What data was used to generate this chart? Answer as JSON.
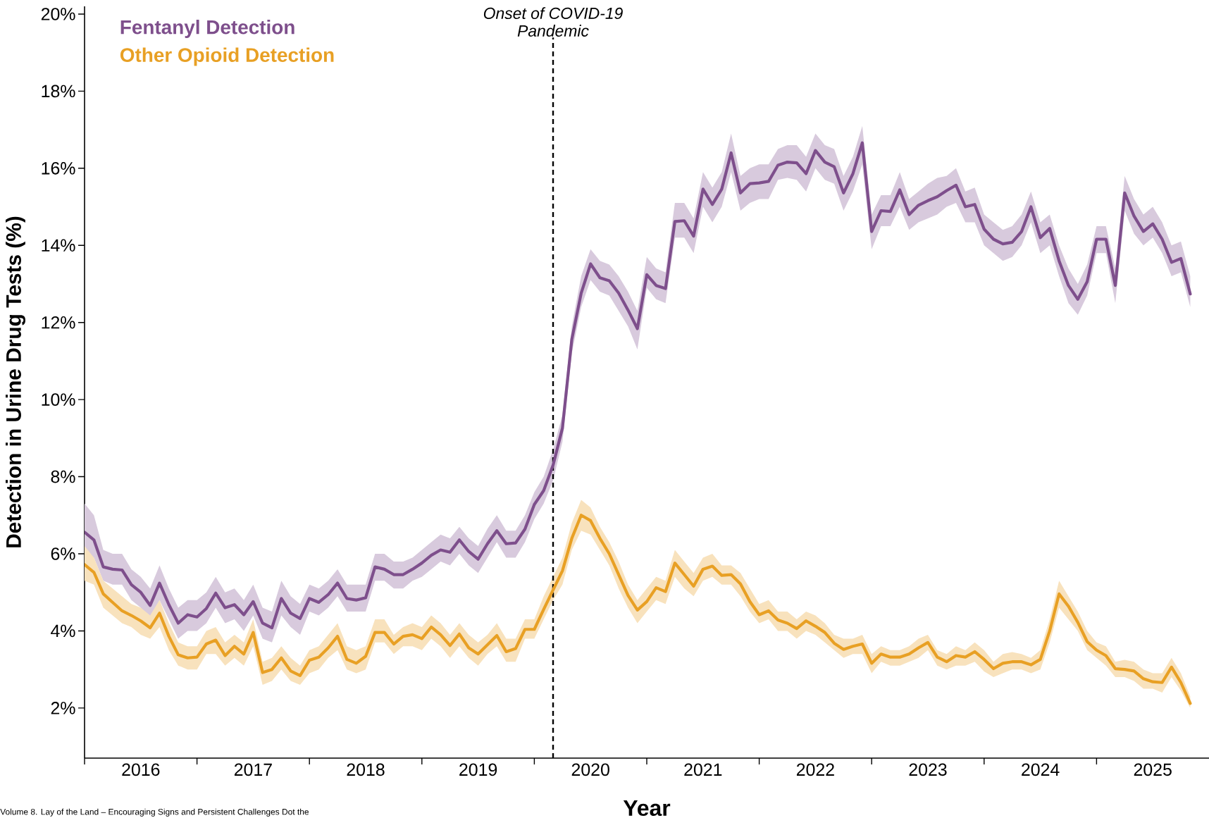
{
  "chart_data": {
    "type": "line",
    "xlabel": "Year",
    "ylabel": "Detection in Urine Drug Tests (%)",
    "legend": "top left",
    "line_style": "solid",
    "xlim": [
      "2016-01",
      "2026-01"
    ],
    "ylim": [
      0.7,
      20.2
    ],
    "xticks": [
      {
        "value": "2016-01",
        "label": null
      },
      {
        "value": "2017-01",
        "label": null
      },
      {
        "value": "2018-01",
        "label": null
      },
      {
        "value": "2019-01",
        "label": null
      },
      {
        "value": "2020-01",
        "label": null
      },
      {
        "value": "2021-01",
        "label": null
      },
      {
        "value": "2022-01",
        "label": null
      },
      {
        "value": "2023-01",
        "label": null
      },
      {
        "value": "2024-01",
        "label": null
      },
      {
        "value": "2025-01",
        "label": null
      },
      {
        "value": "2016-07",
        "label": "2016"
      },
      {
        "value": "2017-07",
        "label": "2017"
      },
      {
        "value": "2018-07",
        "label": "2018"
      },
      {
        "value": "2019-07",
        "label": "2019"
      },
      {
        "value": "2020-07",
        "label": "2020"
      },
      {
        "value": "2021-07",
        "label": "2021"
      },
      {
        "value": "2022-07",
        "label": "2022"
      },
      {
        "value": "2023-07",
        "label": "2023"
      },
      {
        "value": "2024-07",
        "label": "2024"
      },
      {
        "value": "2025-07",
        "label": "2025"
      }
    ],
    "yticks": [
      {
        "value": 2,
        "label": "2%"
      },
      {
        "value": 4,
        "label": "4%"
      },
      {
        "value": 6,
        "label": "6%"
      },
      {
        "value": 8,
        "label": "8%"
      },
      {
        "value": 10,
        "label": "10%"
      },
      {
        "value": 12,
        "label": "12%"
      },
      {
        "value": 14,
        "label": "14%"
      },
      {
        "value": 16,
        "label": "16%"
      },
      {
        "value": 18,
        "label": "18%"
      },
      {
        "value": 20,
        "label": "20%"
      }
    ],
    "ref_lines": [
      {
        "axis": "x",
        "value": "2020-03",
        "label": "Onset of COVID-19 Pandemic",
        "color": "#000000",
        "line_style": "dashed"
      }
    ],
    "annotations": [
      "Volume 8. Lay of the Land – Encouraging Signs and Persistent Challenges Dot the"
    ],
    "x": [
      "2016-01",
      "2016-02",
      "2016-03",
      "2016-04",
      "2016-05",
      "2016-06",
      "2016-07",
      "2016-08",
      "2016-09",
      "2016-10",
      "2016-11",
      "2016-12",
      "2017-01",
      "2017-02",
      "2017-03",
      "2017-04",
      "2017-05",
      "2017-06",
      "2017-07",
      "2017-08",
      "2017-09",
      "2017-10",
      "2017-11",
      "2017-12",
      "2018-01",
      "2018-02",
      "2018-03",
      "2018-04",
      "2018-05",
      "2018-06",
      "2018-07",
      "2018-08",
      "2018-09",
      "2018-10",
      "2018-11",
      "2018-12",
      "2019-01",
      "2019-02",
      "2019-03",
      "2019-04",
      "2019-05",
      "2019-06",
      "2019-07",
      "2019-08",
      "2019-09",
      "2019-10",
      "2019-11",
      "2019-12",
      "2020-01",
      "2020-02",
      "2020-03",
      "2020-04",
      "2020-05",
      "2020-06",
      "2020-07",
      "2020-08",
      "2020-09",
      "2020-10",
      "2020-11",
      "2020-12",
      "2021-01",
      "2021-02",
      "2021-03",
      "2021-04",
      "2021-05",
      "2021-06",
      "2021-07",
      "2021-08",
      "2021-09",
      "2021-10",
      "2021-11",
      "2021-12",
      "2022-01",
      "2022-02",
      "2022-03",
      "2022-04",
      "2022-05",
      "2022-06",
      "2022-07",
      "2022-08",
      "2022-09",
      "2022-10",
      "2022-11",
      "2022-12",
      "2023-01",
      "2023-02",
      "2023-03",
      "2023-04",
      "2023-05",
      "2023-06",
      "2023-07",
      "2023-08",
      "2023-09",
      "2023-10",
      "2023-11",
      "2023-12",
      "2024-01",
      "2024-02",
      "2024-03",
      "2024-04",
      "2024-05",
      "2024-06",
      "2024-07",
      "2024-08",
      "2024-09",
      "2024-10",
      "2024-11",
      "2024-12",
      "2025-01",
      "2025-02",
      "2025-03",
      "2025-04",
      "2025-05",
      "2025-06",
      "2025-07",
      "2025-08",
      "2025-09",
      "2025-10",
      "2025-11"
    ],
    "series": [
      {
        "name": "Fentanyl Detection",
        "color": "#7e4f8c",
        "values": [
          6.56,
          6.36,
          5.66,
          5.6,
          5.58,
          5.2,
          5.0,
          4.66,
          5.24,
          4.68,
          4.2,
          4.42,
          4.36,
          4.58,
          4.98,
          4.6,
          4.68,
          4.42,
          4.76,
          4.2,
          4.08,
          4.84,
          4.46,
          4.32,
          4.84,
          4.74,
          4.94,
          5.24,
          4.84,
          4.8,
          4.86,
          5.66,
          5.6,
          5.46,
          5.46,
          5.6,
          5.76,
          5.96,
          6.1,
          6.04,
          6.36,
          6.06,
          5.86,
          6.26,
          6.6,
          6.26,
          6.28,
          6.64,
          7.28,
          7.64,
          8.3,
          9.26,
          11.56,
          12.76,
          13.52,
          13.16,
          13.08,
          12.76,
          12.32,
          11.84,
          13.24,
          12.96,
          12.88,
          14.62,
          14.64,
          14.24,
          15.46,
          15.06,
          15.46,
          16.4,
          15.36,
          15.6,
          15.62,
          15.66,
          16.08,
          16.16,
          16.14,
          15.86,
          16.46,
          16.16,
          16.04,
          15.36,
          15.86,
          16.66,
          14.36,
          14.9,
          14.88,
          15.44,
          14.8,
          15.04,
          15.16,
          15.26,
          15.42,
          15.56,
          15.0,
          15.06,
          14.42,
          14.16,
          14.04,
          14.08,
          14.36,
          15.0,
          14.2,
          14.44,
          13.6,
          12.96,
          12.6,
          13.06,
          14.16,
          14.16,
          12.96,
          15.36,
          14.76,
          14.36,
          14.56,
          14.16,
          13.56,
          13.66,
          12.74
        ],
        "lower": [
          5.9,
          5.9,
          5.3,
          5.2,
          5.2,
          4.8,
          4.6,
          4.3,
          4.8,
          4.3,
          3.8,
          4.0,
          4.0,
          4.2,
          4.6,
          4.2,
          4.3,
          4.0,
          4.4,
          3.8,
          3.7,
          4.4,
          4.1,
          3.9,
          4.5,
          4.4,
          4.6,
          4.9,
          4.5,
          4.5,
          4.5,
          5.3,
          5.3,
          5.1,
          5.1,
          5.3,
          5.4,
          5.6,
          5.8,
          5.7,
          6.0,
          5.7,
          5.5,
          5.9,
          6.3,
          5.9,
          5.9,
          6.3,
          6.9,
          7.3,
          7.9,
          8.9,
          11.2,
          12.4,
          13.1,
          12.8,
          12.7,
          12.3,
          11.9,
          11.3,
          12.9,
          12.6,
          12.5,
          14.2,
          14.2,
          13.8,
          15.0,
          14.6,
          15.0,
          15.9,
          14.9,
          15.1,
          15.2,
          15.2,
          15.7,
          15.75,
          15.7,
          15.4,
          16.0,
          15.7,
          15.6,
          14.9,
          15.4,
          16.1,
          13.9,
          14.5,
          14.5,
          15.0,
          14.4,
          14.6,
          14.7,
          14.8,
          15.0,
          15.1,
          14.6,
          14.6,
          14.0,
          13.8,
          13.6,
          13.7,
          14.0,
          14.6,
          13.8,
          14.0,
          13.2,
          12.5,
          12.2,
          12.7,
          13.8,
          13.8,
          12.5,
          14.9,
          14.3,
          14.0,
          14.2,
          13.8,
          13.2,
          13.3,
          12.4
        ],
        "upper": [
          7.3,
          7.0,
          6.1,
          6.0,
          6.0,
          5.6,
          5.4,
          5.1,
          5.7,
          5.1,
          4.6,
          4.8,
          4.8,
          5.0,
          5.4,
          5.0,
          5.1,
          4.8,
          5.2,
          4.6,
          4.5,
          5.3,
          4.9,
          4.7,
          5.2,
          5.1,
          5.3,
          5.6,
          5.2,
          5.2,
          5.2,
          6.0,
          6.0,
          5.8,
          5.8,
          5.9,
          6.1,
          6.3,
          6.5,
          6.4,
          6.7,
          6.4,
          6.2,
          6.65,
          7.0,
          6.6,
          6.6,
          7.0,
          7.6,
          8.0,
          8.7,
          9.6,
          11.9,
          13.2,
          13.9,
          13.6,
          13.5,
          13.2,
          12.8,
          12.3,
          13.7,
          13.4,
          13.3,
          15.1,
          15.1,
          14.7,
          15.9,
          15.5,
          15.9,
          16.9,
          15.8,
          16.0,
          16.1,
          16.1,
          16.5,
          16.6,
          16.6,
          16.3,
          16.9,
          16.6,
          16.5,
          15.8,
          16.3,
          17.1,
          14.8,
          15.3,
          15.3,
          15.9,
          15.2,
          15.4,
          15.6,
          15.75,
          15.8,
          16.0,
          15.4,
          15.5,
          14.8,
          14.6,
          14.4,
          14.5,
          14.8,
          15.4,
          14.6,
          14.8,
          14.0,
          13.4,
          13.0,
          13.5,
          14.5,
          14.5,
          13.4,
          15.8,
          15.2,
          14.8,
          15.0,
          14.6,
          14.0,
          14.1,
          13.2
        ]
      },
      {
        "name": "Other Opioid Detection",
        "color": "#e8a024",
        "values": [
          5.72,
          5.52,
          4.96,
          4.74,
          4.52,
          4.4,
          4.26,
          4.08,
          4.46,
          3.86,
          3.38,
          3.3,
          3.32,
          3.66,
          3.76,
          3.36,
          3.6,
          3.4,
          3.96,
          2.92,
          3.0,
          3.3,
          2.96,
          2.84,
          3.24,
          3.32,
          3.56,
          3.86,
          3.26,
          3.16,
          3.34,
          3.96,
          3.96,
          3.66,
          3.86,
          3.9,
          3.8,
          4.1,
          3.9,
          3.62,
          3.92,
          3.56,
          3.4,
          3.64,
          3.88,
          3.46,
          3.54,
          4.04,
          4.04,
          4.56,
          5.06,
          5.56,
          6.4,
          7.0,
          6.86,
          6.4,
          6.0,
          5.46,
          4.92,
          4.54,
          4.76,
          5.12,
          5.02,
          5.76,
          5.46,
          5.16,
          5.6,
          5.68,
          5.44,
          5.46,
          5.22,
          4.76,
          4.42,
          4.52,
          4.28,
          4.2,
          4.06,
          4.26,
          4.12,
          3.96,
          3.68,
          3.52,
          3.6,
          3.66,
          3.16,
          3.4,
          3.32,
          3.32,
          3.4,
          3.56,
          3.7,
          3.32,
          3.2,
          3.36,
          3.32,
          3.46,
          3.26,
          3.02,
          3.16,
          3.2,
          3.2,
          3.12,
          3.26,
          4.0,
          4.96,
          4.64,
          4.22,
          3.72,
          3.5,
          3.36,
          3.02,
          3.0,
          2.96,
          2.76,
          2.68,
          2.66,
          3.06,
          2.66,
          2.12
        ],
        "lower": [
          5.3,
          5.2,
          4.6,
          4.4,
          4.2,
          4.1,
          3.9,
          3.8,
          4.1,
          3.5,
          3.1,
          3.0,
          3.0,
          3.4,
          3.4,
          3.1,
          3.3,
          3.1,
          3.6,
          2.6,
          2.7,
          3.0,
          2.7,
          2.6,
          2.9,
          3.0,
          3.3,
          3.5,
          3.0,
          2.9,
          3.0,
          3.7,
          3.7,
          3.4,
          3.6,
          3.6,
          3.5,
          3.8,
          3.6,
          3.3,
          3.6,
          3.3,
          3.1,
          3.4,
          3.6,
          3.2,
          3.2,
          3.8,
          3.8,
          4.3,
          4.8,
          5.2,
          6.1,
          6.6,
          6.5,
          6.1,
          5.7,
          5.1,
          4.6,
          4.2,
          4.5,
          4.8,
          4.7,
          5.4,
          5.1,
          4.9,
          5.3,
          5.4,
          5.2,
          5.2,
          4.9,
          4.5,
          4.2,
          4.3,
          4.0,
          4.0,
          3.8,
          4.0,
          3.9,
          3.7,
          3.5,
          3.3,
          3.4,
          3.4,
          2.9,
          3.2,
          3.1,
          3.1,
          3.2,
          3.3,
          3.5,
          3.1,
          3.0,
          3.1,
          3.1,
          3.2,
          2.95,
          2.8,
          2.9,
          3.0,
          3.0,
          2.9,
          3.0,
          3.7,
          4.6,
          4.3,
          4.0,
          3.5,
          3.3,
          3.1,
          2.8,
          2.8,
          2.7,
          2.5,
          2.5,
          2.4,
          2.8,
          2.45,
          2.0
        ],
        "upper": [
          6.2,
          5.9,
          5.3,
          5.1,
          4.9,
          4.7,
          4.6,
          4.4,
          4.8,
          4.2,
          3.7,
          3.6,
          3.6,
          4.0,
          4.1,
          3.7,
          3.9,
          3.7,
          4.3,
          3.2,
          3.3,
          3.6,
          3.3,
          3.1,
          3.5,
          3.6,
          3.9,
          4.2,
          3.6,
          3.5,
          3.6,
          4.3,
          4.3,
          3.9,
          4.1,
          4.2,
          4.1,
          4.4,
          4.2,
          3.9,
          4.2,
          3.9,
          3.7,
          3.9,
          4.2,
          3.8,
          3.8,
          4.3,
          4.3,
          4.9,
          5.4,
          5.9,
          6.8,
          7.4,
          7.2,
          6.7,
          6.3,
          5.8,
          5.2,
          4.8,
          5.1,
          5.4,
          5.3,
          6.1,
          5.8,
          5.5,
          5.9,
          6.0,
          5.7,
          5.7,
          5.5,
          5.1,
          4.7,
          4.8,
          4.5,
          4.5,
          4.3,
          4.5,
          4.4,
          4.2,
          3.9,
          3.8,
          3.8,
          3.9,
          3.4,
          3.6,
          3.5,
          3.5,
          3.6,
          3.8,
          3.9,
          3.5,
          3.4,
          3.6,
          3.5,
          3.7,
          3.5,
          3.2,
          3.4,
          3.45,
          3.4,
          3.3,
          3.5,
          4.3,
          5.3,
          4.9,
          4.5,
          4.0,
          3.7,
          3.6,
          3.2,
          3.25,
          3.2,
          3.0,
          2.9,
          2.9,
          3.3,
          2.9,
          2.3
        ]
      }
    ]
  }
}
